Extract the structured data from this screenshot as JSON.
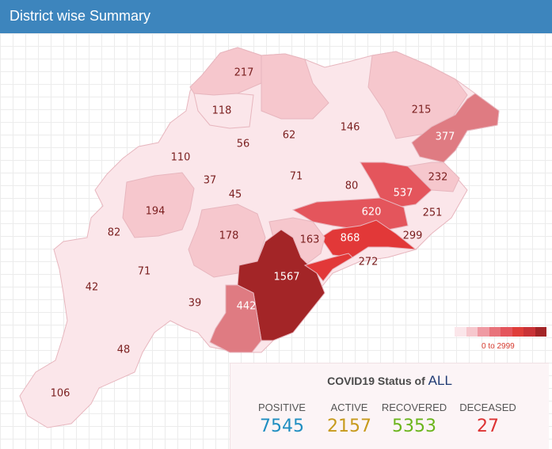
{
  "header": {
    "title": "District wise Summary"
  },
  "districts": [
    {
      "name": "d1",
      "value": "217"
    },
    {
      "name": "d2",
      "value": "215"
    },
    {
      "name": "d3",
      "value": "118"
    },
    {
      "name": "d4",
      "value": "146"
    },
    {
      "name": "d5",
      "value": "62"
    },
    {
      "name": "d6",
      "value": "56"
    },
    {
      "name": "d7",
      "value": "377"
    },
    {
      "name": "d8",
      "value": "110"
    },
    {
      "name": "d9",
      "value": "232"
    },
    {
      "name": "d10",
      "value": "37"
    },
    {
      "name": "d11",
      "value": "71"
    },
    {
      "name": "d12",
      "value": "80"
    },
    {
      "name": "d13",
      "value": "537"
    },
    {
      "name": "d14",
      "value": "45"
    },
    {
      "name": "d15",
      "value": "194"
    },
    {
      "name": "d16",
      "value": "620"
    },
    {
      "name": "d17",
      "value": "251"
    },
    {
      "name": "d18",
      "value": "82"
    },
    {
      "name": "d19",
      "value": "178"
    },
    {
      "name": "d20",
      "value": "163"
    },
    {
      "name": "d21",
      "value": "868"
    },
    {
      "name": "d22",
      "value": "299"
    },
    {
      "name": "d23",
      "value": "272"
    },
    {
      "name": "d24",
      "value": "71"
    },
    {
      "name": "d25",
      "value": "1567"
    },
    {
      "name": "d26",
      "value": "42"
    },
    {
      "name": "d27",
      "value": "39"
    },
    {
      "name": "d28",
      "value": "442"
    },
    {
      "name": "d29",
      "value": "48"
    },
    {
      "name": "d30",
      "value": "106"
    }
  ],
  "legend": {
    "colors": [
      "#fbe6ea",
      "#f6c7cd",
      "#ef9aa3",
      "#e8737b",
      "#e4555c",
      "#df3e3a",
      "#c93337",
      "#a32527"
    ],
    "range": "0 to 2999"
  },
  "status": {
    "title_prefix": "COVID19 Status of",
    "title_scope": "ALL",
    "items": [
      {
        "label": "POSITIVE",
        "value": "7545",
        "color": "#1f8ec1"
      },
      {
        "label": "ACTIVE",
        "value": "2157",
        "color": "#c79a1c"
      },
      {
        "label": "RECOVERED",
        "value": "5353",
        "color": "#6bb51c"
      },
      {
        "label": "DECEASED",
        "value": "27",
        "color": "#dd3333"
      }
    ]
  }
}
